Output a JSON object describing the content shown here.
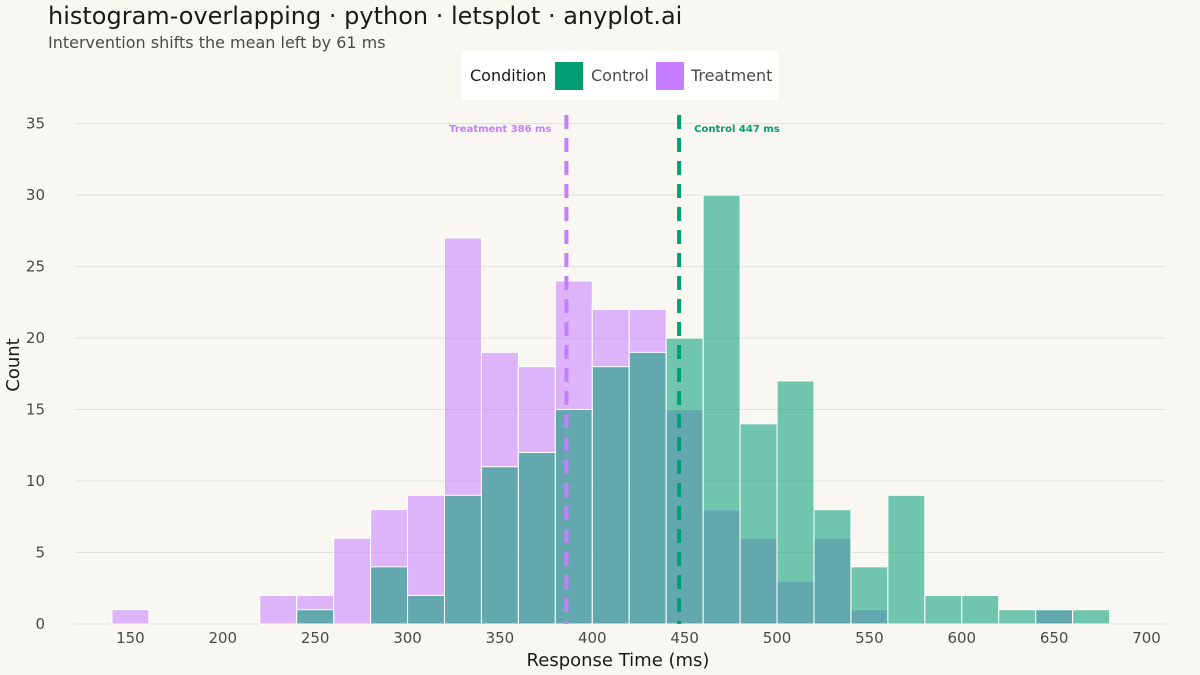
{
  "page": {
    "title": "histogram-overlapping · python · letsplot · anyplot.ai",
    "subtitle": "Intervention shifts the mean left by 61 ms"
  },
  "legend": {
    "title": "Condition",
    "items": [
      {
        "label": "Control",
        "color": "#009E73"
      },
      {
        "label": "Treatment",
        "color": "#C77DFF"
      }
    ]
  },
  "chart_data": {
    "type": "histogram",
    "title": "histogram-overlapping · python · letsplot · anyplot.ai",
    "subtitle": "Intervention shifts the mean left by 61 ms",
    "xlabel": "Response Time (ms)",
    "ylabel": "Count",
    "xlim": [
      120,
      710
    ],
    "ylim": [
      0,
      37
    ],
    "x_ticks": [
      150,
      200,
      250,
      300,
      350,
      400,
      450,
      500,
      550,
      600,
      650,
      700
    ],
    "y_ticks": [
      0,
      5,
      10,
      15,
      20,
      25,
      30,
      35
    ],
    "bin_width": 20,
    "grid": "horizontal",
    "legend_position": "top",
    "series": [
      {
        "name": "Treatment",
        "color": "#C77DFF",
        "bins": [
          {
            "x": 150,
            "count": 1
          },
          {
            "x": 230,
            "count": 2
          },
          {
            "x": 250,
            "count": 2
          },
          {
            "x": 270,
            "count": 6
          },
          {
            "x": 290,
            "count": 8
          },
          {
            "x": 310,
            "count": 9
          },
          {
            "x": 330,
            "count": 27
          },
          {
            "x": 350,
            "count": 19
          },
          {
            "x": 370,
            "count": 18
          },
          {
            "x": 390,
            "count": 24
          },
          {
            "x": 410,
            "count": 22
          },
          {
            "x": 430,
            "count": 22
          },
          {
            "x": 450,
            "count": 15
          },
          {
            "x": 470,
            "count": 8
          },
          {
            "x": 490,
            "count": 6
          },
          {
            "x": 510,
            "count": 3
          },
          {
            "x": 530,
            "count": 6
          },
          {
            "x": 550,
            "count": 1
          },
          {
            "x": 650,
            "count": 1
          }
        ]
      },
      {
        "name": "Control",
        "color": "#009E73",
        "bins": [
          {
            "x": 250,
            "count": 1
          },
          {
            "x": 290,
            "count": 4
          },
          {
            "x": 310,
            "count": 2
          },
          {
            "x": 330,
            "count": 9
          },
          {
            "x": 350,
            "count": 11
          },
          {
            "x": 370,
            "count": 12
          },
          {
            "x": 390,
            "count": 15
          },
          {
            "x": 410,
            "count": 18
          },
          {
            "x": 430,
            "count": 19
          },
          {
            "x": 450,
            "count": 20
          },
          {
            "x": 470,
            "count": 30
          },
          {
            "x": 490,
            "count": 14
          },
          {
            "x": 510,
            "count": 17
          },
          {
            "x": 530,
            "count": 8
          },
          {
            "x": 550,
            "count": 4
          },
          {
            "x": 570,
            "count": 9
          },
          {
            "x": 590,
            "count": 2
          },
          {
            "x": 610,
            "count": 2
          },
          {
            "x": 630,
            "count": 1
          },
          {
            "x": 650,
            "count": 1
          },
          {
            "x": 670,
            "count": 1
          }
        ]
      }
    ],
    "mean_lines": [
      {
        "series": "Treatment",
        "value": 386,
        "label": "Treatment  386 ms",
        "color": "#C77DFF"
      },
      {
        "series": "Control",
        "value": 447,
        "label": "Control  447 ms",
        "color": "#009E73"
      }
    ]
  }
}
